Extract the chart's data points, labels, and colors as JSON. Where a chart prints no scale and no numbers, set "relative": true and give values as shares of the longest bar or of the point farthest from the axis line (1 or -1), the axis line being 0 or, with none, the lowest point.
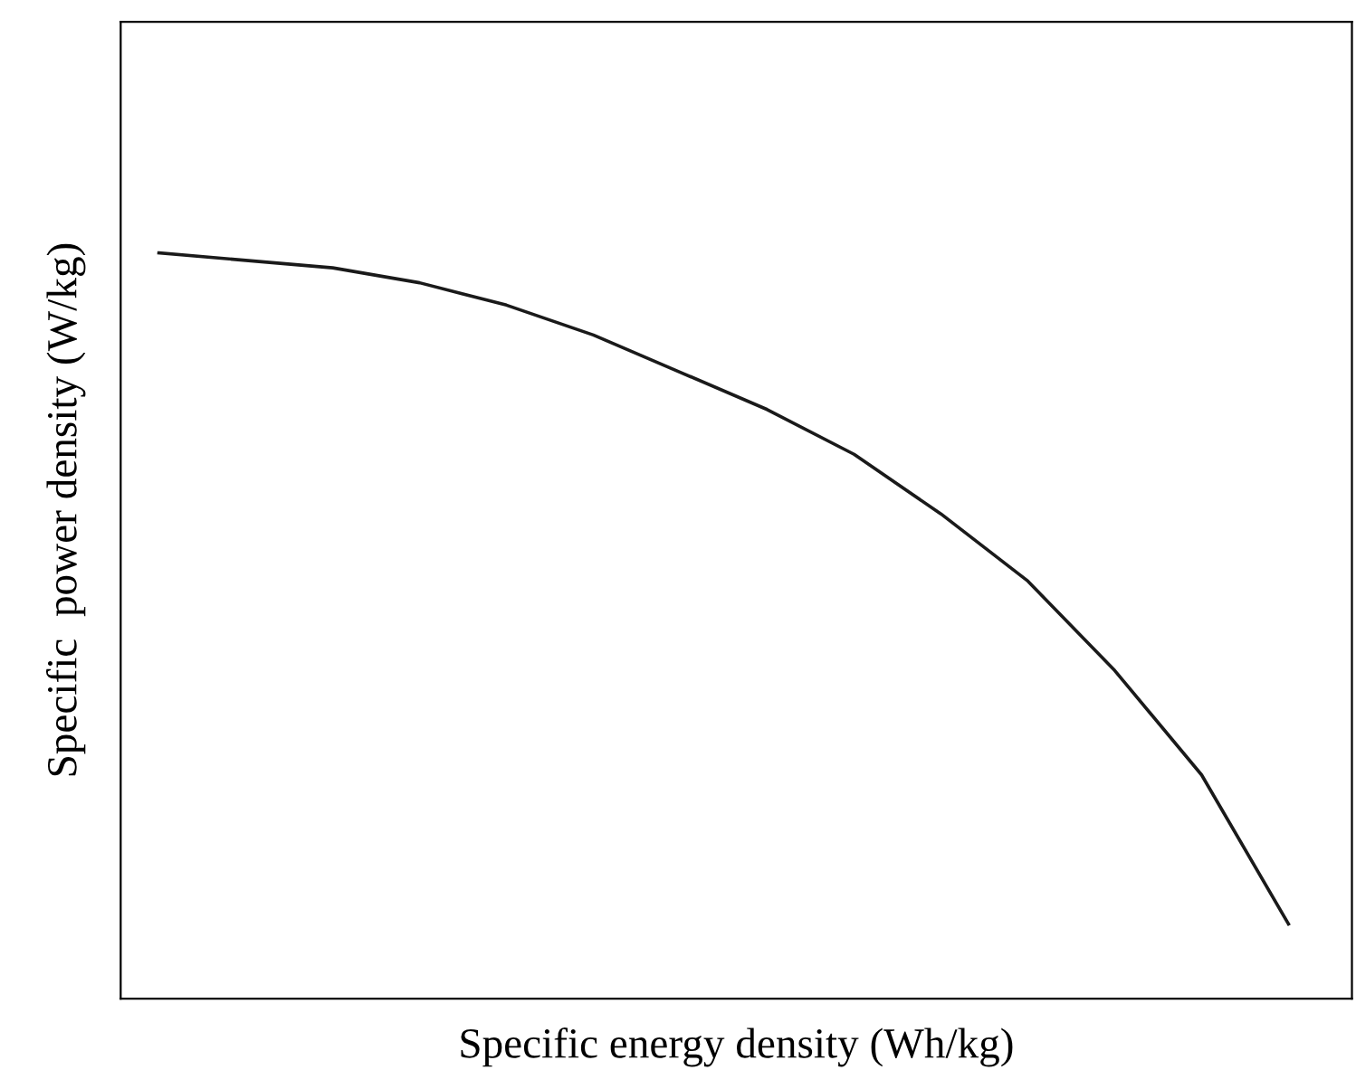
{
  "chart_data": {
    "type": "line",
    "xlabel": "Specific energy density (Wh/kg)",
    "ylabel": "Specific  power density (W/kg)",
    "relative": true,
    "categories": [
      null,
      null,
      null,
      null,
      null,
      null,
      null,
      null,
      null,
      null,
      null,
      null,
      null,
      null
    ],
    "series": [
      {
        "color": "#1a1a1a",
        "values": [
          1,
          0.99,
          0.98,
          0.96,
          0.93,
          0.89,
          0.84,
          0.79,
          0.73,
          0.65,
          0.56,
          0.44,
          0.3,
          0.1
        ]
      }
    ],
    "grid": false,
    "legend": false,
    "marker": "none",
    "line_style": "solid"
  }
}
